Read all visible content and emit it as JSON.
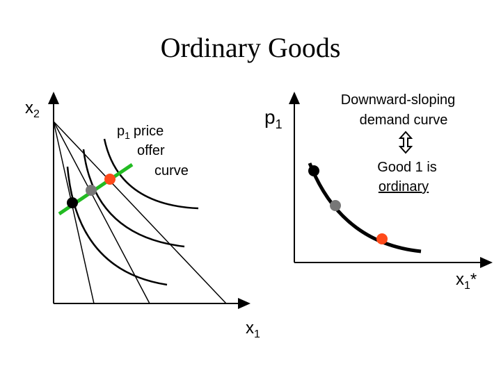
{
  "title": "Ordinary Goods",
  "left_diagram": {
    "y_axis_label": {
      "base": "x",
      "sub": "2"
    },
    "x_axis_label": {
      "base": "x",
      "sub": "1"
    },
    "offer_curve_label": {
      "base": "p",
      "sub": "1",
      "lines": [
        "price",
        "offer",
        "curve"
      ]
    }
  },
  "right_diagram": {
    "y_axis_label": {
      "base": "p",
      "sub": "1"
    },
    "x_axis_label": {
      "base": "x",
      "sub": "1",
      "sup": "*"
    },
    "caption": {
      "lines": [
        "Downward-sloping",
        "demand curve"
      ]
    },
    "note": {
      "lines": [
        "Good 1 is",
        "ordinary"
      ]
    }
  }
}
